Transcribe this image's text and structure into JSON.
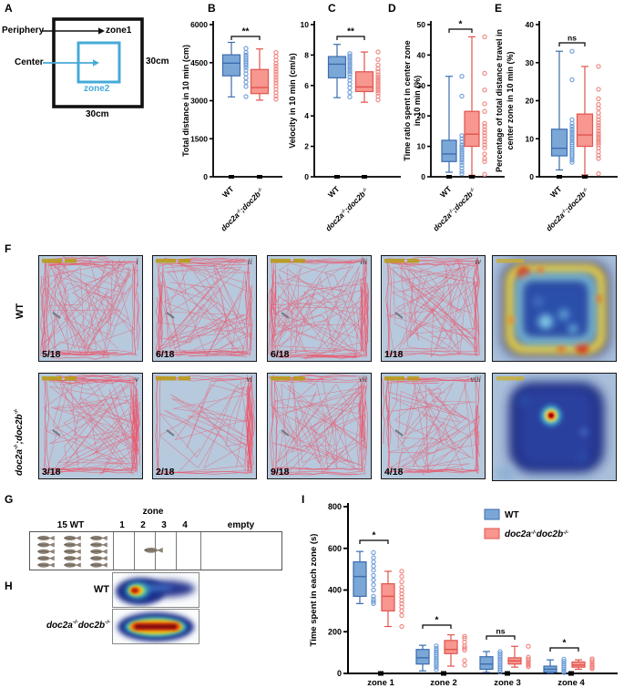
{
  "panel_letters": {
    "A": "A",
    "B": "B",
    "C": "C",
    "D": "D",
    "E": "E",
    "F": "F",
    "G": "G",
    "H": "H",
    "I": "I"
  },
  "colors": {
    "wt_fill": "#7ba7d7",
    "wt_stroke": "#3c6cae",
    "wt_point": "#6c9cd6",
    "mut_fill": "#f7978f",
    "mut_stroke": "#e0544d",
    "mut_point": "#ef837c",
    "arena_inner": "#45aad8",
    "trace_bg": "#b7c9dc",
    "trace_line": "#ef4f64"
  },
  "genotypes": {
    "wt": "WT",
    "mutant": "doc2a-/-;doc2b-/-",
    "mutant_nosep": "doc2a-/-doc2b-/-"
  },
  "panel_A": {
    "periphery": "Periphery",
    "zone1": "zone1",
    "center": "Center",
    "zone2": "zone2",
    "side_label": "30cm",
    "bottom_label": "30cm"
  },
  "chart_data": [
    {
      "id": "B",
      "type": "box",
      "ylabel": [
        "Total distance in 10 min (cm)"
      ],
      "ylim": [
        0,
        6000
      ],
      "yticks": [
        0,
        1500,
        3000,
        4500,
        6000
      ],
      "categories": [
        "WT",
        "doc2a-/-;doc2b-/-"
      ],
      "significance": "**",
      "legend_position": "none",
      "series": [
        {
          "name": "WT",
          "box": {
            "whislo": 3150,
            "q1": 3980,
            "med": 4480,
            "q3": 4810,
            "whishi": 5300
          },
          "points": [
            5060,
            4900,
            4800,
            4720,
            4640,
            4560,
            4480,
            4400,
            4310,
            4200,
            4060,
            3900,
            3730,
            3560,
            3160
          ]
        },
        {
          "name": "doc2a-/-;doc2b-/-",
          "box": {
            "whislo": 3020,
            "q1": 3280,
            "med": 3520,
            "q3": 4230,
            "whishi": 5040
          },
          "points": [
            4900,
            4750,
            4600,
            4470,
            4360,
            4250,
            4140,
            4030,
            3920,
            3810,
            3700,
            3580,
            3450,
            3320,
            3180,
            3060
          ]
        }
      ]
    },
    {
      "id": "C",
      "type": "box",
      "ylabel": [
        "Velocity in 10 min (cm/s)"
      ],
      "ylim": [
        0,
        10
      ],
      "yticks": [
        0,
        2,
        4,
        6,
        8,
        10
      ],
      "categories": [
        "WT",
        "doc2a-/-;doc2b-/-"
      ],
      "significance": "**",
      "legend_position": "none",
      "series": [
        {
          "name": "WT",
          "box": {
            "whislo": 5.2,
            "q1": 6.5,
            "med": 7.4,
            "q3": 7.9,
            "whishi": 8.7
          },
          "points": [
            8.1,
            7.95,
            7.8,
            7.65,
            7.5,
            7.35,
            7.2,
            7.05,
            6.9,
            6.75,
            6.55,
            6.35,
            6.1,
            5.85,
            5.55,
            5.25
          ]
        },
        {
          "name": "doc2a-/-;doc2b-/-",
          "box": {
            "whislo": 4.9,
            "q1": 5.6,
            "med": 5.9,
            "q3": 6.9,
            "whishi": 8.2
          },
          "points": [
            8.2,
            7.7,
            7.35,
            7.1,
            6.9,
            6.7,
            6.55,
            6.4,
            6.25,
            6.1,
            5.95,
            5.8,
            5.65,
            5.5,
            5.3,
            5.05
          ]
        }
      ]
    },
    {
      "id": "D",
      "type": "box",
      "ylabel": [
        "Time ratio spent in center zone",
        "in 10 min (%)"
      ],
      "ylim": [
        0,
        50
      ],
      "yticks": [
        0,
        10,
        20,
        30,
        40,
        50
      ],
      "categories": [
        "WT",
        "doc2a-/-;doc2b-/-"
      ],
      "significance": "*",
      "legend_position": "none",
      "series": [
        {
          "name": "WT",
          "box": {
            "whislo": 1.5,
            "q1": 5,
            "med": 7.5,
            "q3": 12,
            "whishi": 33
          },
          "points": [
            33,
            26.5,
            13.5,
            12.5,
            11.5,
            10.5,
            9.8,
            9,
            8.3,
            7.6,
            6.9,
            6.2,
            5.5,
            4.7,
            3.8,
            2.8,
            1.8,
            1
          ]
        },
        {
          "name": "doc2a-/-;doc2b-/-",
          "box": {
            "whislo": 0.5,
            "q1": 10,
            "med": 14,
            "q3": 21.5,
            "whishi": 46
          },
          "points": [
            46,
            34,
            28.5,
            24,
            21.5,
            17.5,
            16.5,
            15.5,
            14.5,
            13.5,
            12.5,
            11.5,
            10.5,
            9.5,
            7.5,
            6,
            5,
            0.8
          ]
        }
      ]
    },
    {
      "id": "E",
      "type": "box",
      "ylabel": [
        "Percentage of total distance travel in",
        "center zone in 10 min (%)"
      ],
      "ylim": [
        0,
        40
      ],
      "yticks": [
        0,
        10,
        20,
        30,
        40
      ],
      "categories": [
        "WT",
        "doc2a-/-;doc2b-/-"
      ],
      "significance": "ns",
      "legend_position": "none",
      "series": [
        {
          "name": "WT",
          "box": {
            "whislo": 1.8,
            "q1": 5.5,
            "med": 7.5,
            "q3": 12.5,
            "whishi": 33
          },
          "points": [
            33,
            25.5,
            15,
            14,
            13.3,
            12.6,
            12,
            11.4,
            10.8,
            10.2,
            9.6,
            9,
            8.5,
            8,
            7.5,
            7,
            6.5,
            6,
            5.5,
            5,
            4.4,
            3.8
          ]
        },
        {
          "name": "doc2a-/-;doc2b-/-",
          "box": {
            "whislo": 0.5,
            "q1": 8,
            "med": 11,
            "q3": 16.5,
            "whishi": 29
          },
          "points": [
            29,
            23,
            20.5,
            19,
            18,
            16.8,
            15.8,
            15,
            14.2,
            13.5,
            12.8,
            12.1,
            11.4,
            10.8,
            10.2,
            9.6,
            9,
            8.4,
            7.6,
            6.6,
            5.6,
            4.8,
            0.8
          ]
        }
      ]
    },
    {
      "id": "I",
      "type": "grouped_box",
      "ylabel": [
        "Time spent  in each zone (s)"
      ],
      "ylim": [
        0,
        800
      ],
      "yticks": [
        0,
        200,
        400,
        600,
        800
      ],
      "legend_position": "top-right",
      "legend": {
        "wt": "WT",
        "mut": "doc2a-/-doc2b-/-"
      },
      "groups": [
        {
          "label": "zone 1",
          "significance": "*",
          "wt": {
            "box": {
              "whislo": 335,
              "q1": 370,
              "med": 465,
              "q3": 535,
              "whishi": 585
            },
            "points": [
              580,
              555,
              535,
              515,
              495,
              470,
              448,
              425,
              400,
              370,
              355,
              345,
              335
            ]
          },
          "mut": {
            "box": {
              "whislo": 225,
              "q1": 300,
              "med": 370,
              "q3": 430,
              "whishi": 490
            },
            "points": [
              490,
              465,
              440,
              415,
              398,
              382,
              366,
              350,
              335,
              318,
              300,
              278,
              225
            ]
          }
        },
        {
          "label": "zone 2",
          "significance": "*",
          "wt": {
            "box": {
              "whislo": 12,
              "q1": 45,
              "med": 75,
              "q3": 115,
              "whishi": 135
            },
            "points": [
              132,
              120,
              110,
              100,
              90,
              80,
              70,
              60,
              50,
              40,
              30,
              18
            ]
          },
          "mut": {
            "box": {
              "whislo": 35,
              "q1": 95,
              "med": 115,
              "q3": 158,
              "whishi": 185
            },
            "points": [
              178,
              168,
              150,
              132,
              122,
              112,
              62,
              40
            ]
          }
        },
        {
          "label": "zone 3",
          "significance": "ns",
          "wt": {
            "box": {
              "whislo": 5,
              "q1": 20,
              "med": 45,
              "q3": 80,
              "whishi": 105
            },
            "points": [
              105,
              95,
              85,
              75,
              65,
              55,
              45,
              35,
              25,
              15,
              6
            ]
          },
          "mut": {
            "box": {
              "whislo": 30,
              "q1": 45,
              "med": 60,
              "q3": 75,
              "whishi": 130
            },
            "points": [
              130,
              78,
              68,
              60,
              53,
              46,
              40,
              33
            ]
          }
        },
        {
          "label": "zone 4",
          "significance": "*",
          "wt": {
            "box": {
              "whislo": 2,
              "q1": 6,
              "med": 20,
              "q3": 35,
              "whishi": 65
            },
            "points": [
              68,
              58,
              48,
              38,
              28,
              18,
              10,
              4
            ]
          },
          "mut": {
            "box": {
              "whislo": 20,
              "q1": 30,
              "med": 40,
              "q3": 55,
              "whishi": 65
            },
            "points": [
              70,
              62,
              54,
              46,
              40,
              34,
              28,
              22
            ]
          }
        }
      ]
    }
  ],
  "panel_F": {
    "row1_label": "WT",
    "row2_label": "doc2a-/-;doc2b-/-",
    "panels": [
      {
        "numeral": "i",
        "count": "5/18"
      },
      {
        "numeral": "ii",
        "count": "6/18"
      },
      {
        "numeral": "iii",
        "count": "6/18"
      },
      {
        "numeral": "iv",
        "count": "1/18"
      },
      {
        "numeral": "v",
        "count": "3/18"
      },
      {
        "numeral": "vi",
        "count": "2/18"
      },
      {
        "numeral": "vii",
        "count": "9/18"
      },
      {
        "numeral": "viii",
        "count": "4/18"
      }
    ]
  },
  "panel_G": {
    "group_label": "15 WT",
    "zone_word": "zone",
    "zones": [
      "1",
      "2",
      "3",
      "4"
    ],
    "empty_label": "empty",
    "fish_count": 15
  },
  "panel_H": {
    "row1_label": "WT",
    "row2_label": "doc2a-/-doc2b-/-"
  }
}
